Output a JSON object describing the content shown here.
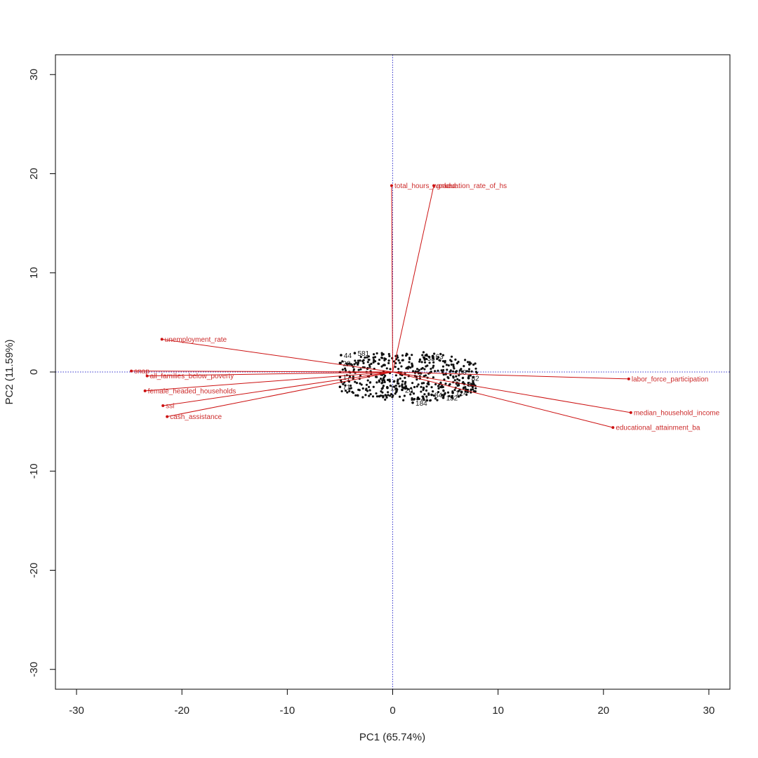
{
  "chart_data": {
    "type": "scatter",
    "subtype": "pca-biplot",
    "title": "",
    "xlabel": "PC1 (65.74%)",
    "ylabel": "PC2 (11.59%)",
    "xlim": [
      -32,
      32
    ],
    "ylim": [
      -32,
      32
    ],
    "x_ticks": [
      -30,
      -20,
      -10,
      0,
      10,
      20,
      30
    ],
    "y_ticks": [
      -30,
      -20,
      -10,
      0,
      10,
      20,
      30
    ],
    "reference_lines": {
      "x": 0,
      "y": 0,
      "color": "#3333cc",
      "style": "dotted"
    },
    "loadings": [
      {
        "name": "total_hours_worked",
        "x": -0.1,
        "y": 18.8
      },
      {
        "name": "graduation_rate_of_hs",
        "x": 3.9,
        "y": 18.8
      },
      {
        "name": "unemployment_rate",
        "x": -21.9,
        "y": 3.3
      },
      {
        "name": "snap",
        "x": -24.8,
        "y": 0.1
      },
      {
        "name": "all_families_below_poverty",
        "x": -23.3,
        "y": -0.4
      },
      {
        "name": "female_headed_households",
        "x": -23.5,
        "y": -1.9
      },
      {
        "name": "ssi",
        "x": -21.8,
        "y": -3.4
      },
      {
        "name": "cash_assistance",
        "x": -21.4,
        "y": -4.5
      },
      {
        "name": "labor_force_participation",
        "x": 22.4,
        "y": -0.7
      },
      {
        "name": "median_household_income",
        "x": 22.6,
        "y": -4.1
      },
      {
        "name": "educational_attainment_ba",
        "x": 20.9,
        "y": -5.6
      }
    ],
    "observations": [
      {
        "label": "44",
        "x": -4.9,
        "y": 1.7
      },
      {
        "label": "581",
        "x": -3.6,
        "y": 1.9
      },
      {
        "label": "28",
        "x": -5.0,
        "y": 0.9
      },
      {
        "label": "17",
        "x": -5.0,
        "y": -0.5
      },
      {
        "label": "71",
        "x": -5.0,
        "y": -1.5
      },
      {
        "label": "20",
        "x": 0.9,
        "y": -1.8
      },
      {
        "label": "15",
        "x": -0.5,
        "y": -1.6
      },
      {
        "label": "184",
        "x": 1.9,
        "y": -3.1
      },
      {
        "label": "152",
        "x": 4.8,
        "y": -2.6
      },
      {
        "label": "124",
        "x": 5.7,
        "y": -2.1
      },
      {
        "label": "84",
        "x": 3.7,
        "y": -2.3
      },
      {
        "label": "21",
        "x": 2.4,
        "y": -2.6
      },
      {
        "label": "82",
        "x": 7.2,
        "y": -0.6
      },
      {
        "label": "83",
        "x": 6.8,
        "y": -1.2
      },
      {
        "label": "08",
        "x": 6.0,
        "y": 0.0
      },
      {
        "label": "63",
        "x": 3.8,
        "y": 1.6
      },
      {
        "label": "33",
        "x": 3.0,
        "y": 1.4
      }
    ]
  }
}
